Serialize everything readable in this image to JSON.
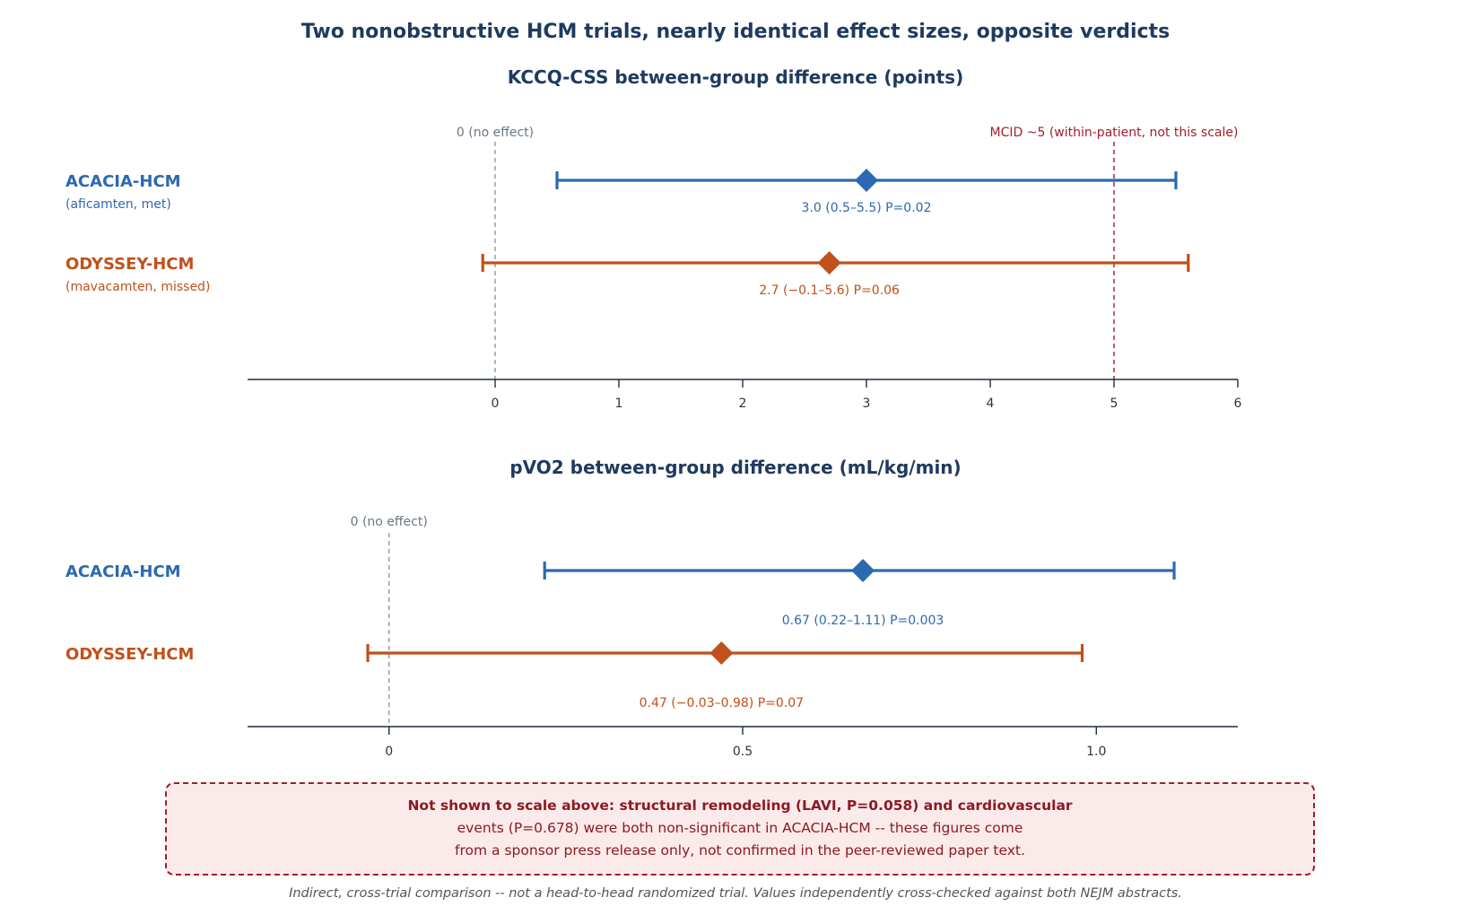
{
  "title": "Two nonobstructive HCM trials, nearly identical effect sizes, opposite verdicts",
  "colors": {
    "acacia": "#2c69b0",
    "odyssey": "#c0501c",
    "mcid": "#a11d2b",
    "zero": "#8f9aa6",
    "axis": "#1f2d3d"
  },
  "chart_data": [
    {
      "type": "forest",
      "title": "KCCQ-CSS between-group difference (points)",
      "xlim": [
        -2,
        6
      ],
      "ticks": [
        0,
        1,
        2,
        3,
        4,
        5,
        6
      ],
      "tick_labels": [
        "0",
        "1",
        "2",
        "3",
        "4",
        "5",
        "6"
      ],
      "reference_lines": [
        {
          "x": 0,
          "label": "0 (no effect)",
          "style": "zero"
        },
        {
          "x": 5,
          "label": "MCID ~5 (within-patient, not this scale)",
          "style": "mcid"
        }
      ],
      "series": [
        {
          "name": "ACACIA-HCM",
          "subtitle": "(aficamten, met)",
          "color_key": "acacia",
          "estimate": 3.0,
          "ci": [
            0.5,
            5.5
          ],
          "label": "3.0 (0.5–5.5) P=0.02"
        },
        {
          "name": "ODYSSEY-HCM",
          "subtitle": "(mavacamten, missed)",
          "color_key": "odyssey",
          "estimate": 2.7,
          "ci": [
            -0.1,
            5.6
          ],
          "label": "2.7 (−0.1–5.6) P=0.06"
        }
      ]
    },
    {
      "type": "forest",
      "title": "pVO2 between-group difference (mL/kg/min)",
      "xlim": [
        -0.2,
        1.2
      ],
      "ticks": [
        0,
        0.5,
        1.0
      ],
      "tick_labels": [
        "0",
        "0.5",
        "1.0"
      ],
      "reference_lines": [
        {
          "x": 0,
          "label": "0 (no effect)",
          "style": "zero"
        }
      ],
      "series": [
        {
          "name": "ACACIA-HCM",
          "subtitle": "",
          "color_key": "acacia",
          "estimate": 0.67,
          "ci": [
            0.22,
            1.11
          ],
          "label": "0.67 (0.22–1.11) P=0.003"
        },
        {
          "name": "ODYSSEY-HCM",
          "subtitle": "",
          "color_key": "odyssey",
          "estimate": 0.47,
          "ci": [
            -0.03,
            0.98
          ],
          "label": "0.47 (−0.03–0.98) P=0.07"
        }
      ]
    }
  ],
  "note": {
    "line1": "Not shown to scale above: structural remodeling (LAVI, P=0.058) and cardiovascular",
    "line2": "events (P=0.678) were both non-significant in ACACIA-HCM -- these figures come",
    "line3": "from a sponsor press release only, not confirmed in the peer-reviewed paper text."
  },
  "footer": "Indirect, cross-trial comparison -- not a head-to-head randomized trial. Values independently cross-checked against both NEJM abstracts."
}
